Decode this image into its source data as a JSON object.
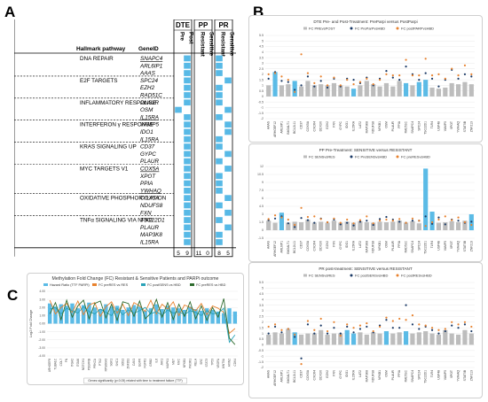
{
  "panel_labels": {
    "a": "A",
    "b": "B",
    "c": "C"
  },
  "table": {
    "header_pathway": "Hallmark pathway",
    "header_geneid": "GeneID",
    "groups": [
      {
        "name": "DTE",
        "cols": [
          "Pre",
          "Post"
        ]
      },
      {
        "name": "PP",
        "cols": [
          "Resistant",
          "Sensitive"
        ]
      },
      {
        "name": "PR",
        "cols": [
          "Resistant",
          "Sensitive"
        ]
      }
    ],
    "pathways": [
      {
        "name": "DNA REPAIR",
        "genes": [
          "SNAPC4",
          "ARL6IP1",
          "AAAS"
        ]
      },
      {
        "name": "E2F TARGETS",
        "genes": [
          "SPC24",
          "EZH2",
          "RAD51C"
        ]
      },
      {
        "name": "INFLAMMATORY RESPONSE",
        "genes": [
          "PLAUR",
          "OSM",
          "IL15RA"
        ]
      },
      {
        "name": "INTERFERON γ RESPONSE",
        "genes": [
          "VAMP5",
          "IDO1",
          "IL15RA"
        ]
      },
      {
        "name": "KRAS SIGNALING UP",
        "genes": [
          "CD37",
          "GYPC",
          "PLAUR"
        ]
      },
      {
        "name": "MYC TARGETS V1",
        "genes": [
          "COX5A",
          "XPOT",
          "PPIA",
          "YWHAQ"
        ]
      },
      {
        "name": "OXIDATIVE PHOSPHORYLATION",
        "genes": [
          "COX5A",
          "NDUFS8",
          "FXN"
        ]
      },
      {
        "name": "TNFα SIGNALING VIA NFKB",
        "genes": [
          "TSC22D1",
          "PLAUR",
          "MAP3K8",
          "IL15RA"
        ]
      }
    ],
    "underlined": [
      0,
      8,
      15,
      18
    ],
    "filled": [
      [
        0,
        1,
        0,
        0,
        1,
        0
      ],
      [
        0,
        1,
        0,
        0,
        1,
        0
      ],
      [
        0,
        1,
        0,
        0,
        1,
        0
      ],
      [
        0,
        1,
        0,
        0,
        0,
        1
      ],
      [
        0,
        1,
        0,
        0,
        1,
        0
      ],
      [
        0,
        1,
        0,
        0,
        1,
        0
      ],
      [
        0,
        1,
        0,
        0,
        1,
        0
      ],
      [
        1,
        0,
        0,
        0,
        0,
        1
      ],
      [
        0,
        1,
        0,
        0,
        1,
        0
      ],
      [
        0,
        1,
        0,
        0,
        0,
        1
      ],
      [
        0,
        1,
        0,
        0,
        0,
        1
      ],
      [
        0,
        1,
        0,
        0,
        1,
        0
      ],
      [
        0,
        1,
        0,
        0,
        1,
        0
      ],
      [
        0,
        1,
        0,
        0,
        0,
        1
      ],
      [
        0,
        1,
        0,
        0,
        1,
        0
      ],
      [
        0,
        1,
        0,
        0,
        0,
        1
      ],
      [
        0,
        1,
        0,
        0,
        1,
        0
      ],
      [
        0,
        1,
        0,
        0,
        1,
        0
      ],
      [
        0,
        1,
        0,
        0,
        1,
        0
      ],
      [
        0,
        1,
        0,
        0,
        0,
        1
      ],
      [
        0,
        1,
        0,
        0,
        1,
        0
      ],
      [
        0,
        1,
        0,
        0,
        0,
        1
      ],
      [
        0,
        1,
        0,
        0,
        1,
        0
      ],
      [
        0,
        1,
        0,
        0,
        0,
        1
      ],
      [
        0,
        1,
        0,
        0,
        1,
        0
      ],
      [
        0,
        1,
        0,
        0,
        1,
        0
      ]
    ],
    "totals": [
      "5",
      "9",
      "11",
      "0",
      "8",
      "5"
    ]
  },
  "colors": {
    "fill": "#57b9e6",
    "bar_gray": "#bdbdbd",
    "bar_blue": "#5bbbe6",
    "navy": "#1b3a66",
    "orange": "#e8822e",
    "teal": "#2aa3b8",
    "green": "#2e6b2e"
  },
  "chart_data": [
    {
      "type": "bar",
      "title": "DTE Pre- and Post-Treatment: PreParpi versus PostParpi",
      "categories": [
        "AAAS",
        "ARHGEF12",
        "ARL6IP1",
        "B4GALT1",
        "BCL2L11",
        "CD37",
        "COX5A",
        "CXCR4",
        "DDX3X",
        "EZH2",
        "FXN",
        "GYPC",
        "IDO1",
        "IL15RA",
        "LAT2",
        "MAP3K8",
        "NDUFS8",
        "NFKB1",
        "OSM",
        "PLAUR",
        "PPIA",
        "RAD51C",
        "SNAPC4",
        "SPC24",
        "TSC22D1",
        "TLR4",
        "USP48",
        "VAMP5",
        "XPOT",
        "YWHAQ",
        "STAT5B",
        "ZNF213"
      ],
      "ylim": [
        -2,
        5.5
      ],
      "yticks": [
        -2,
        -1.5,
        -1,
        -0.5,
        0,
        0.5,
        1,
        1.5,
        2,
        2.5,
        3,
        3.5,
        4,
        4.5,
        5,
        5.5
      ],
      "legend": [
        "FC PREvsPOST",
        "FC PreParPvsHBD",
        "FC postPARPvsHBD"
      ],
      "series": [
        {
          "name": "FC PREvsPOST",
          "kind": "bar",
          "values": [
            1.0,
            2.2,
            1.0,
            1.1,
            1.4,
            0.9,
            1.4,
            1.0,
            1.1,
            1.0,
            1.2,
            1.0,
            0.9,
            0.7,
            1.0,
            1.4,
            1.1,
            0.9,
            1.2,
            0.9,
            1.4,
            1.2,
            1.0,
            1.3,
            1.5,
            0.8,
            0.7,
            0.8,
            1.2,
            1.1,
            1.3,
            1.1
          ],
          "highlight": [
            1,
            4,
            13,
            21,
            23,
            24
          ]
        },
        {
          "name": "FC PreParPvsHBD",
          "kind": "point",
          "values": [
            1.6,
            2.2,
            1.4,
            1.3,
            0.6,
            1.0,
            1.8,
            0.9,
            1.4,
            0.8,
            1.6,
            0.9,
            1.6,
            1.5,
            1.2,
            1.7,
            1.0,
            1.6,
            2.3,
            1.7,
            1.5,
            2.7,
            2.0,
            1.5,
            2.1,
            1.6,
            0.9,
            1.5,
            2.4,
            1.6,
            2.0,
            1.8
          ]
        },
        {
          "name": "FC postPARPvsHBD",
          "kind": "point",
          "values": [
            2.0,
            2.1,
            1.8,
            1.5,
            0.4,
            3.8,
            2.1,
            1.2,
            1.8,
            1.0,
            1.7,
            1.0,
            1.5,
            1.1,
            1.3,
            1.6,
            1.1,
            1.5,
            2.0,
            1.9,
            1.9,
            3.3,
            1.9,
            1.9,
            3.4,
            1.9,
            2.0,
            1.6,
            2.5,
            1.9,
            2.8,
            2.0
          ]
        }
      ]
    },
    {
      "type": "bar",
      "title": "PP Pre-Treatment: SENSITIVE versus RESISTANT",
      "categories": [
        "AAAS",
        "ARHGEF12",
        "ARL6IP1",
        "B4GALT1",
        "BCL2L11",
        "CD37",
        "COX5A",
        "CXCR4",
        "DDX3X",
        "EZH2",
        "FXN",
        "GYPC",
        "IDO1",
        "IL15RA",
        "LAT2",
        "MAP3K8",
        "NDUFS8",
        "NFKB1",
        "OSM",
        "PLAUR",
        "PPIA",
        "RAD51C",
        "SNAPC4",
        "SPC24",
        "TSC22D1",
        "TLR4",
        "USP48",
        "VAMP5",
        "XPOT",
        "YWHAQ",
        "STAT5B",
        "ZNF213"
      ],
      "ylim": [
        -1.5,
        12.5
      ],
      "yticks": [
        -1.5,
        0,
        1.5,
        3,
        4.5,
        6,
        7.5,
        9,
        10.5,
        12
      ],
      "legend": [
        "FC SENSvsRES",
        "FC PreSENSvsHBD",
        "FC preRESvsHBD"
      ],
      "series": [
        {
          "name": "FC SENSvsRES",
          "kind": "bar",
          "values": [
            1.8,
            1.4,
            3.3,
            1.4,
            1.6,
            1.5,
            2.0,
            1.4,
            1.6,
            1.4,
            1.8,
            1.4,
            1.6,
            1.4,
            1.7,
            1.5,
            1.4,
            1.6,
            1.5,
            1.6,
            1.8,
            1.4,
            1.7,
            1.3,
            11.6,
            3.5,
            1.4,
            1.5,
            1.7,
            1.5,
            1.8,
            3.0
          ],
          "highlight": [
            2,
            24,
            25,
            31
          ]
        },
        {
          "name": "FC PreSENSvsHBD",
          "kind": "point",
          "values": [
            1.9,
            2.2,
            2.6,
            1.3,
            0.6,
            2.3,
            1.9,
            1.4,
            2.2,
            1.5,
            2.0,
            1.1,
            1.4,
            0.9,
            1.6,
            1.8,
            1.0,
            2.1,
            2.5,
            2.0,
            1.6,
            1.4,
            1.8,
            1.8,
            2.6,
            1.2,
            2.4,
            1.1,
            2.0,
            1.8,
            1.4,
            1.6
          ]
        },
        {
          "name": "FC preRESvsHBD",
          "kind": "point",
          "values": [
            2.1,
            2.8,
            2.4,
            2.0,
            1.0,
            4.2,
            2.5,
            2.6,
            2.1,
            1.5,
            2.2,
            1.4,
            2.0,
            1.3,
            1.9,
            2.6,
            1.3,
            1.8,
            2.0,
            1.8,
            2.1,
            1.4,
            2.2,
            1.8,
            0.8,
            1.5,
            2.0,
            2.6,
            1.9,
            2.4,
            1.5,
            1.0
          ]
        }
      ]
    },
    {
      "type": "bar",
      "title": "PR post-treatment: SENSITIVE versus RESISTANT",
      "categories": [
        "AAAS",
        "ARHGEF12",
        "ARL6IP1",
        "B4GALT1",
        "BCL2L11",
        "CD37",
        "COX5A",
        "CXCR4",
        "DDX3X",
        "EZH2",
        "FXN",
        "GYPC",
        "IDO1",
        "IL15RA",
        "LAT2",
        "MAP3K8",
        "NDUFS8",
        "NFKB1",
        "OSM",
        "PLAUR",
        "PPIA",
        "RAD51C",
        "SNAPC4",
        "SPC24",
        "TSC22D1",
        "TLR4",
        "USP48",
        "VAMP5",
        "XPOT",
        "YWHAQ",
        "STAT5B",
        "ZNF213"
      ],
      "ylim": [
        -2,
        5.5
      ],
      "yticks": [
        -2,
        -1.5,
        -1,
        -0.5,
        0,
        0.5,
        1,
        1.5,
        2,
        2.5,
        3,
        3.5,
        4,
        4.5,
        5,
        5.5
      ],
      "legend": [
        "FC SENSvsRES",
        "FC postSENSvsHBD",
        "FC postRESvsHBD"
      ],
      "series": [
        {
          "name": "FC SENSvsRES",
          "kind": "bar",
          "values": [
            0.9,
            1.1,
            1.0,
            1.4,
            1.1,
            0.9,
            1.0,
            1.0,
            1.3,
            0.9,
            1.0,
            1.0,
            1.3,
            1.0,
            1.1,
            0.9,
            1.1,
            1.0,
            1.2,
            1.0,
            1.1,
            1.2,
            1.0,
            1.1,
            1.2,
            1.0,
            0.9,
            1.3,
            1.0,
            0.9,
            1.3,
            1.0
          ],
          "highlight": [
            4,
            12,
            13,
            18,
            21
          ]
        },
        {
          "name": "FC postSENSvsHBD",
          "kind": "point",
          "values": [
            1.0,
            1.6,
            1.1,
            1.4,
            0.7,
            -1.2,
            1.8,
            1.0,
            1.7,
            1.0,
            1.5,
            1.0,
            1.6,
            1.1,
            1.4,
            1.6,
            1.1,
            1.7,
            2.2,
            1.5,
            1.5,
            3.5,
            1.8,
            1.4,
            1.6,
            1.3,
            1.0,
            1.2,
            1.7,
            1.5,
            1.8,
            1.2
          ]
        },
        {
          "name": "FC postRESvsHBD",
          "kind": "point",
          "values": [
            1.6,
            1.8,
            1.3,
            1.4,
            0.9,
            -1.7,
            2.1,
            1.3,
            2.3,
            1.2,
            2.0,
            0.8,
            1.8,
            1.5,
            1.7,
            1.9,
            1.2,
            1.6,
            2.4,
            2.1,
            2.3,
            2.2,
            2.6,
            1.8,
            1.7,
            1.5,
            1.3,
            1.4,
            2.0,
            1.8,
            2.0,
            1.6
          ]
        }
      ]
    },
    {
      "type": "line",
      "title": "Methylation Fold Change (FC) Resistant & Sensitive Patients and PARPi outcome",
      "ylabel": "Log2 Fold Change",
      "ylim": [
        -4,
        4
      ],
      "yticks": [
        -4,
        -3,
        -2,
        -1,
        0,
        1,
        2,
        3,
        4
      ],
      "legend": [
        "Hazard Ratio (TTF PARPi)",
        "FC preRES vs RES",
        "FC postSENS vs HBD",
        "FC preRES vs HBD"
      ],
      "note": "Genes significantly (p<0.05) related with time to treatment failure (TTF)",
      "categories": [
        "ARHGEF8",
        "TUBA1C",
        "COL7",
        "FN",
        "ITGA2",
        "ITGA6",
        "NOTCH1",
        "PDGFRB",
        "PRKCA",
        "PTK2",
        "RPS6KA3",
        "SGK1",
        "SHC1",
        "SOS1",
        "ZNF281",
        "CAV1",
        "EGFR",
        "FGFR1",
        "GRB2",
        "IL6",
        "JAK1",
        "MAPK1",
        "MET",
        "MYC",
        "NFKB1",
        "PIK3R1",
        "RELA",
        "SRC",
        "STAT3",
        "TP53",
        "VEGFA",
        "WNT5A",
        "AXIN2",
        "CDK4"
      ],
      "series": [
        {
          "name": "Hazard Ratio (TTF PARPi)",
          "kind": "bar",
          "values": [
            2.5,
            2.1,
            2.4,
            2.2,
            2.5,
            1.9,
            2.3,
            2.6,
            2.0,
            1.8,
            2.4,
            2.1,
            2.2,
            1.7,
            2.0,
            2.3,
            2.1,
            1.6,
            1.9,
            2.4,
            1.8,
            2.2,
            2.0,
            1.9,
            1.7,
            2.1,
            1.8,
            1.6,
            1.9,
            1.7,
            1.5,
            1.3,
            1.9,
            1.5
          ]
        },
        {
          "name": "FC preRES vs RES",
          "kind": "line",
          "values": [
            2.9,
            1.2,
            2.0,
            2.5,
            1.4,
            2.8,
            1.1,
            2.3,
            2.6,
            0.9,
            2.1,
            2.7,
            1.3,
            2.4,
            1.0,
            2.6,
            2.2,
            1.5,
            2.9,
            1.2,
            2.4,
            1.8,
            2.7,
            1.0,
            2.3,
            2.0,
            1.6,
            2.5,
            1.1,
            2.2,
            1.9,
            1.4,
            -1.2,
            -0.6
          ]
        },
        {
          "name": "FC postSENS vs HBD",
          "kind": "line",
          "values": [
            1.8,
            2.0,
            1.2,
            1.9,
            1.6,
            1.3,
            2.1,
            1.5,
            1.2,
            1.8,
            1.4,
            1.0,
            1.9,
            1.1,
            1.7,
            1.3,
            1.6,
            2.0,
            1.2,
            1.5,
            1.0,
            1.7,
            1.3,
            1.5,
            1.1,
            1.6,
            1.4,
            1.0,
            1.6,
            1.2,
            1.3,
            1.9,
            -2.3,
            -1.4
          ]
        },
        {
          "name": "FC preRES vs HBD",
          "kind": "line",
          "values": [
            1.2,
            2.6,
            0.5,
            2.9,
            0.8,
            2.2,
            2.9,
            0.6,
            2.5,
            2.8,
            0.7,
            2.4,
            0.4,
            2.7,
            2.5,
            0.9,
            2.8,
            0.6,
            1.3,
            3.0,
            0.8,
            2.6,
            0.5,
            2.4,
            0.9,
            2.7,
            0.6,
            2.2,
            0.4,
            2.0,
            0.8,
            3.1,
            -1.8,
            -2.6
          ]
        }
      ]
    }
  ]
}
